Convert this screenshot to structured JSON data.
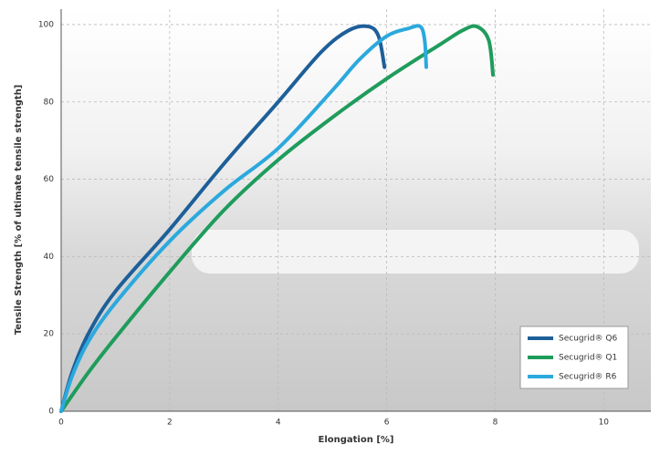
{
  "chart_data": {
    "type": "line",
    "x_label": "Elongation [%]",
    "y_label": "Tensile Strength [% of ultimate tensile strength]",
    "xlim": [
      0,
      10.87
    ],
    "xticks": [
      0,
      2,
      4,
      6,
      8,
      10
    ],
    "ylim": [
      0,
      104
    ],
    "yticks": [
      0,
      20,
      40,
      60,
      80,
      100
    ],
    "grid": true,
    "legend": "lower right",
    "series": [
      {
        "name": "Secugrid® Q6",
        "color": "#1d5f99",
        "x": [
          0,
          0.2,
          0.5,
          1,
          2,
          3,
          4,
          4.8,
          5.3,
          5.66,
          5.85,
          5.96
        ],
        "values": [
          0,
          10,
          20,
          31,
          47,
          64,
          80,
          93,
          98.5,
          99.5,
          97,
          89
        ]
      },
      {
        "name": "Secugrid® Q1",
        "color": "#1f9c5c",
        "x": [
          0,
          0.5,
          1,
          2,
          3,
          4,
          5,
          6,
          7,
          7.4,
          7.66,
          7.88,
          7.96
        ],
        "values": [
          0,
          10,
          19,
          36,
          52,
          65,
          76,
          86,
          95,
          98.5,
          99.5,
          96,
          87
        ]
      },
      {
        "name": "Secugrid® R6",
        "color": "#2ba9dd",
        "x": [
          0,
          0.2,
          0.5,
          1,
          2,
          3,
          4,
          5,
          5.5,
          6,
          6.4,
          6.62,
          6.7,
          6.73
        ],
        "values": [
          0,
          9,
          18,
          28,
          44,
          57,
          68,
          83,
          91,
          97,
          99,
          99.5,
          96,
          89
        ]
      }
    ]
  }
}
